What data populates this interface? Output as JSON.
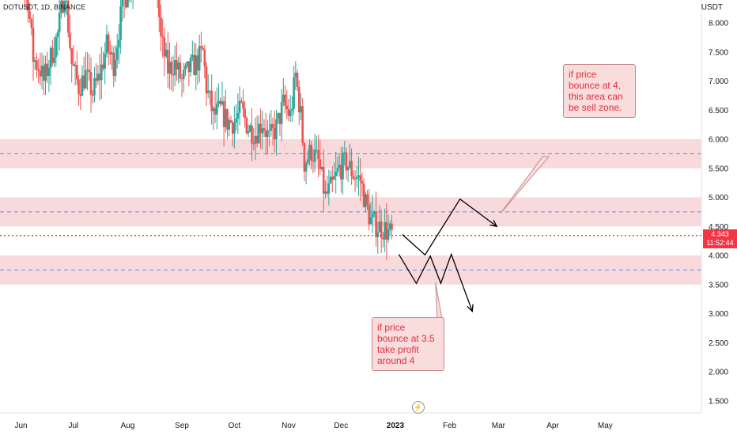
{
  "header": {
    "symbol_label": "DOTUSDT, 1D, BINANCE",
    "currency": "USDT"
  },
  "price_tag": {
    "price": "4.343",
    "countdown": "11:52:44"
  },
  "notes": [
    {
      "text": "if price bounce at 4, this area can be sell zone."
    },
    {
      "text": "if price bounce at 3.5 take profit around 4"
    }
  ],
  "colors": {
    "up": "#26a69a",
    "down": "#ef5350",
    "zone": "#f8d3d6",
    "dashed": "#5b8def",
    "current_price": "#f23645",
    "projection": "#000000"
  },
  "chart_data": {
    "type": "candlestick",
    "symbol": "DOTUSDT",
    "interval": "1D",
    "exchange": "BINANCE",
    "y_unit": "USDT",
    "ylim": [
      1.35,
      8.4
    ],
    "y_ticks": [
      "8.000",
      "7.500",
      "7.000",
      "6.500",
      "6.000",
      "5.500",
      "5.000",
      "4.500",
      "4.000",
      "3.500",
      "3.000",
      "2.500",
      "2.000",
      "1.500"
    ],
    "y_tick_values": [
      8.0,
      7.5,
      7.0,
      6.5,
      6.0,
      5.5,
      5.0,
      4.5,
      4.0,
      3.5,
      3.0,
      2.5,
      2.0,
      1.5
    ],
    "x_ticks": [
      "Jun",
      "Jul",
      "Aug",
      "Sep",
      "Oct",
      "Nov",
      "Dec",
      "2023",
      "Feb",
      "Mar",
      "Apr",
      "May"
    ],
    "x_tick_dates": [
      "2022-06-01",
      "2022-07-01",
      "2022-08-01",
      "2022-09-01",
      "2022-10-01",
      "2022-11-01",
      "2022-12-01",
      "2023-01-01",
      "2023-02-01",
      "2023-03-01",
      "2023-04-01",
      "2023-05-01"
    ],
    "x_range": [
      "2022-05-20",
      "2023-06-25"
    ],
    "current_price": 4.343,
    "zones": [
      {
        "from": 5.5,
        "to": 6.0,
        "mid": 5.75
      },
      {
        "from": 4.5,
        "to": 5.0,
        "mid": 4.75
      },
      {
        "from": 3.5,
        "to": 4.0,
        "mid": 3.75
      }
    ],
    "close_path": [
      {
        "date": "2022-06-01",
        "close": 8.8
      },
      {
        "date": "2022-06-05",
        "close": 8.4
      },
      {
        "date": "2022-06-08",
        "close": 7.4
      },
      {
        "date": "2022-06-12",
        "close": 7.2
      },
      {
        "date": "2022-06-14",
        "close": 7.0
      },
      {
        "date": "2022-06-18",
        "close": 7.4
      },
      {
        "date": "2022-06-22",
        "close": 7.8
      },
      {
        "date": "2022-06-26",
        "close": 8.6
      },
      {
        "date": "2022-06-30",
        "close": 7.3
      },
      {
        "date": "2022-07-04",
        "close": 6.9
      },
      {
        "date": "2022-07-08",
        "close": 7.1
      },
      {
        "date": "2022-07-12",
        "close": 6.8
      },
      {
        "date": "2022-07-16",
        "close": 7.1
      },
      {
        "date": "2022-07-20",
        "close": 7.6
      },
      {
        "date": "2022-07-24",
        "close": 7.3
      },
      {
        "date": "2022-07-28",
        "close": 8.1
      },
      {
        "date": "2022-08-01",
        "close": 8.6
      },
      {
        "date": "2022-08-05",
        "close": 8.9
      },
      {
        "date": "2022-08-10",
        "close": 9.1
      },
      {
        "date": "2022-08-14",
        "close": 9.2
      },
      {
        "date": "2022-08-18",
        "close": 8.5
      },
      {
        "date": "2022-08-20",
        "close": 7.7
      },
      {
        "date": "2022-08-24",
        "close": 7.2
      },
      {
        "date": "2022-08-28",
        "close": 7.3
      },
      {
        "date": "2022-09-01",
        "close": 7.0
      },
      {
        "date": "2022-09-05",
        "close": 7.2
      },
      {
        "date": "2022-09-09",
        "close": 7.3
      },
      {
        "date": "2022-09-13",
        "close": 7.5
      },
      {
        "date": "2022-09-15",
        "close": 6.9
      },
      {
        "date": "2022-09-19",
        "close": 6.4
      },
      {
        "date": "2022-09-23",
        "close": 6.5
      },
      {
        "date": "2022-09-27",
        "close": 6.3
      },
      {
        "date": "2022-10-01",
        "close": 6.3
      },
      {
        "date": "2022-10-05",
        "close": 6.5
      },
      {
        "date": "2022-10-09",
        "close": 6.2
      },
      {
        "date": "2022-10-13",
        "close": 6.1
      },
      {
        "date": "2022-10-17",
        "close": 6.3
      },
      {
        "date": "2022-10-21",
        "close": 6.0
      },
      {
        "date": "2022-10-25",
        "close": 6.2
      },
      {
        "date": "2022-10-29",
        "close": 6.6
      },
      {
        "date": "2022-11-02",
        "close": 6.4
      },
      {
        "date": "2022-11-05",
        "close": 7.1
      },
      {
        "date": "2022-11-08",
        "close": 6.4
      },
      {
        "date": "2022-11-10",
        "close": 5.6
      },
      {
        "date": "2022-11-14",
        "close": 5.8
      },
      {
        "date": "2022-11-18",
        "close": 5.6
      },
      {
        "date": "2022-11-22",
        "close": 5.0
      },
      {
        "date": "2022-11-26",
        "close": 5.2
      },
      {
        "date": "2022-11-30",
        "close": 5.5
      },
      {
        "date": "2022-12-04",
        "close": 5.6
      },
      {
        "date": "2022-12-08",
        "close": 5.4
      },
      {
        "date": "2022-12-12",
        "close": 5.3
      },
      {
        "date": "2022-12-15",
        "close": 4.9
      },
      {
        "date": "2022-12-18",
        "close": 4.6
      },
      {
        "date": "2022-12-22",
        "close": 4.5
      },
      {
        "date": "2022-12-26",
        "close": 4.45
      },
      {
        "date": "2022-12-30",
        "close": 4.35
      }
    ],
    "projection_paths": [
      {
        "points": [
          {
            "date": "2023-01-03",
            "y": 4.02
          },
          {
            "date": "2023-01-13",
            "y": 3.52
          },
          {
            "date": "2023-01-21",
            "y": 3.99
          },
          {
            "date": "2023-01-27",
            "y": 3.52
          },
          {
            "date": "2023-02-02",
            "y": 4.02
          },
          {
            "date": "2023-02-14",
            "y": 3.04
          }
        ]
      },
      {
        "points": [
          {
            "date": "2023-01-05",
            "y": 4.36
          },
          {
            "date": "2023-01-18",
            "y": 4.01
          },
          {
            "date": "2023-02-07",
            "y": 4.97
          },
          {
            "date": "2023-02-28",
            "y": 4.5
          }
        ]
      }
    ],
    "annotation_pointers": [
      {
        "note": 0,
        "from": {
          "date": "2023-03-28",
          "y": 5.7
        },
        "to": {
          "date": "2023-03-02",
          "y": 4.72
        }
      },
      {
        "note": 1,
        "from": {
          "date": "2023-01-27",
          "y": 2.72
        },
        "to": {
          "date": "2023-01-24",
          "y": 3.54
        }
      }
    ]
  }
}
